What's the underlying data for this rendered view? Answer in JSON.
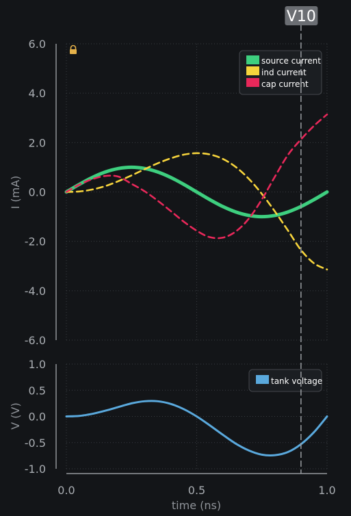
{
  "colors": {
    "background": "#131518",
    "grid": "#3a3d42",
    "axis": "#b0b3b8",
    "source": "#3ecf7f",
    "inductor": "#f7d43c",
    "capacitor": "#e8285a",
    "tank": "#5aa9dd",
    "cursor": "#9a9da2",
    "cursor_badge": "#6b6e73",
    "lock": "#e6b24a"
  },
  "icons": {
    "lock": "lock-icon"
  },
  "cursor": {
    "label": "V10",
    "x": 0.9
  },
  "chart_data": [
    {
      "type": "line",
      "ylabel": "I (mA)",
      "xlim": [
        0.0,
        1.0
      ],
      "ylim": [
        -6.0,
        6.0
      ],
      "yticks": [
        "6.0",
        "4.0",
        "2.0",
        "0.0",
        "-2.0",
        "-4.0",
        "-6.0"
      ],
      "grid": true,
      "legend_position": "top-right",
      "series": [
        {
          "name": "source current",
          "style": "solid",
          "x": [
            0.0,
            0.05,
            0.1,
            0.15,
            0.2,
            0.25,
            0.3,
            0.35,
            0.4,
            0.45,
            0.5,
            0.55,
            0.6,
            0.65,
            0.7,
            0.75,
            0.8,
            0.85,
            0.9,
            0.95,
            1.0
          ],
          "y": [
            0.0,
            0.31,
            0.59,
            0.81,
            0.95,
            1.0,
            0.95,
            0.81,
            0.59,
            0.31,
            0.0,
            -0.31,
            -0.59,
            -0.81,
            -0.95,
            -1.0,
            -0.95,
            -0.81,
            -0.59,
            -0.31,
            0.0
          ]
        },
        {
          "name": "ind current",
          "style": "dashed",
          "x": [
            0.0,
            0.05,
            0.1,
            0.15,
            0.2,
            0.25,
            0.3,
            0.35,
            0.4,
            0.45,
            0.5,
            0.55,
            0.6,
            0.65,
            0.7,
            0.75,
            0.8,
            0.85,
            0.9,
            0.95,
            1.0
          ],
          "y": [
            0.0,
            0.02,
            0.1,
            0.24,
            0.44,
            0.67,
            0.92,
            1.16,
            1.36,
            1.51,
            1.57,
            1.52,
            1.34,
            1.01,
            0.53,
            -0.08,
            -0.79,
            -1.56,
            -2.35,
            -2.89,
            -3.14
          ]
        },
        {
          "name": "cap current",
          "style": "dashed",
          "x": [
            0.0,
            0.05,
            0.1,
            0.15,
            0.2,
            0.25,
            0.3,
            0.35,
            0.4,
            0.45,
            0.5,
            0.55,
            0.6,
            0.65,
            0.7,
            0.75,
            0.8,
            0.85,
            0.9,
            0.95,
            1.0
          ],
          "y": [
            0.0,
            0.3,
            0.52,
            0.65,
            0.62,
            0.33,
            0.03,
            -0.35,
            -0.77,
            -1.2,
            -1.57,
            -1.83,
            -1.85,
            -1.6,
            -1.08,
            -0.3,
            0.62,
            1.5,
            2.13,
            2.68,
            3.14
          ]
        }
      ]
    },
    {
      "type": "line",
      "xlabel": "time (ns)",
      "ylabel": "V (V)",
      "xlim": [
        0.0,
        1.0
      ],
      "ylim": [
        -1.0,
        1.0
      ],
      "xticks": [
        "0.0",
        "0.5",
        "1.0"
      ],
      "yticks": [
        "1.0",
        "0.5",
        "0.0",
        "-0.5",
        "-1.0"
      ],
      "grid": true,
      "legend_position": "top-right",
      "series": [
        {
          "name": "tank voltage",
          "style": "solid",
          "x": [
            0.0,
            0.05,
            0.1,
            0.15,
            0.2,
            0.25,
            0.3,
            0.35,
            0.4,
            0.45,
            0.5,
            0.55,
            0.6,
            0.65,
            0.7,
            0.75,
            0.8,
            0.85,
            0.9,
            0.95,
            1.0
          ],
          "y": [
            0.0,
            0.01,
            0.05,
            0.11,
            0.18,
            0.25,
            0.29,
            0.29,
            0.24,
            0.14,
            0.0,
            -0.17,
            -0.35,
            -0.52,
            -0.65,
            -0.73,
            -0.74,
            -0.68,
            -0.53,
            -0.3,
            0.0
          ]
        }
      ]
    }
  ]
}
